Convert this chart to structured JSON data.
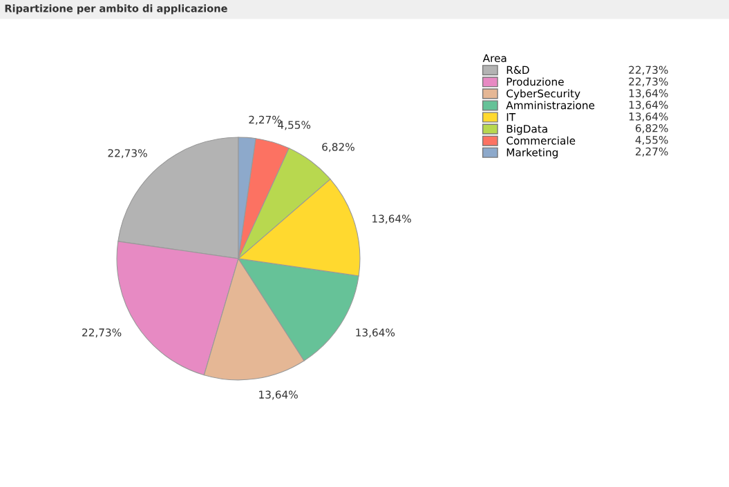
{
  "chart_data": {
    "type": "pie",
    "title": "Ripartizione per ambito di applicazione",
    "legend_title": "Area",
    "legend": "top right",
    "categories": [
      "R&D",
      "Produzione",
      "CyberSecurity",
      "Amministrazione",
      "IT",
      "BigData",
      "Commerciale",
      "Marketing"
    ],
    "values": [
      22.73,
      22.73,
      13.64,
      13.64,
      13.64,
      6.82,
      4.55,
      2.27
    ],
    "value_labels": [
      "22,73%",
      "22,73%",
      "13,64%",
      "13,64%",
      "13,64%",
      "6,82%",
      "4,55%",
      "2,27%"
    ],
    "colors": [
      "#b3b3b3",
      "#e78ac3",
      "#e5b795",
      "#66c298",
      "#ffd92f",
      "#b8d84f",
      "#fc7262",
      "#8da9cb"
    ]
  }
}
